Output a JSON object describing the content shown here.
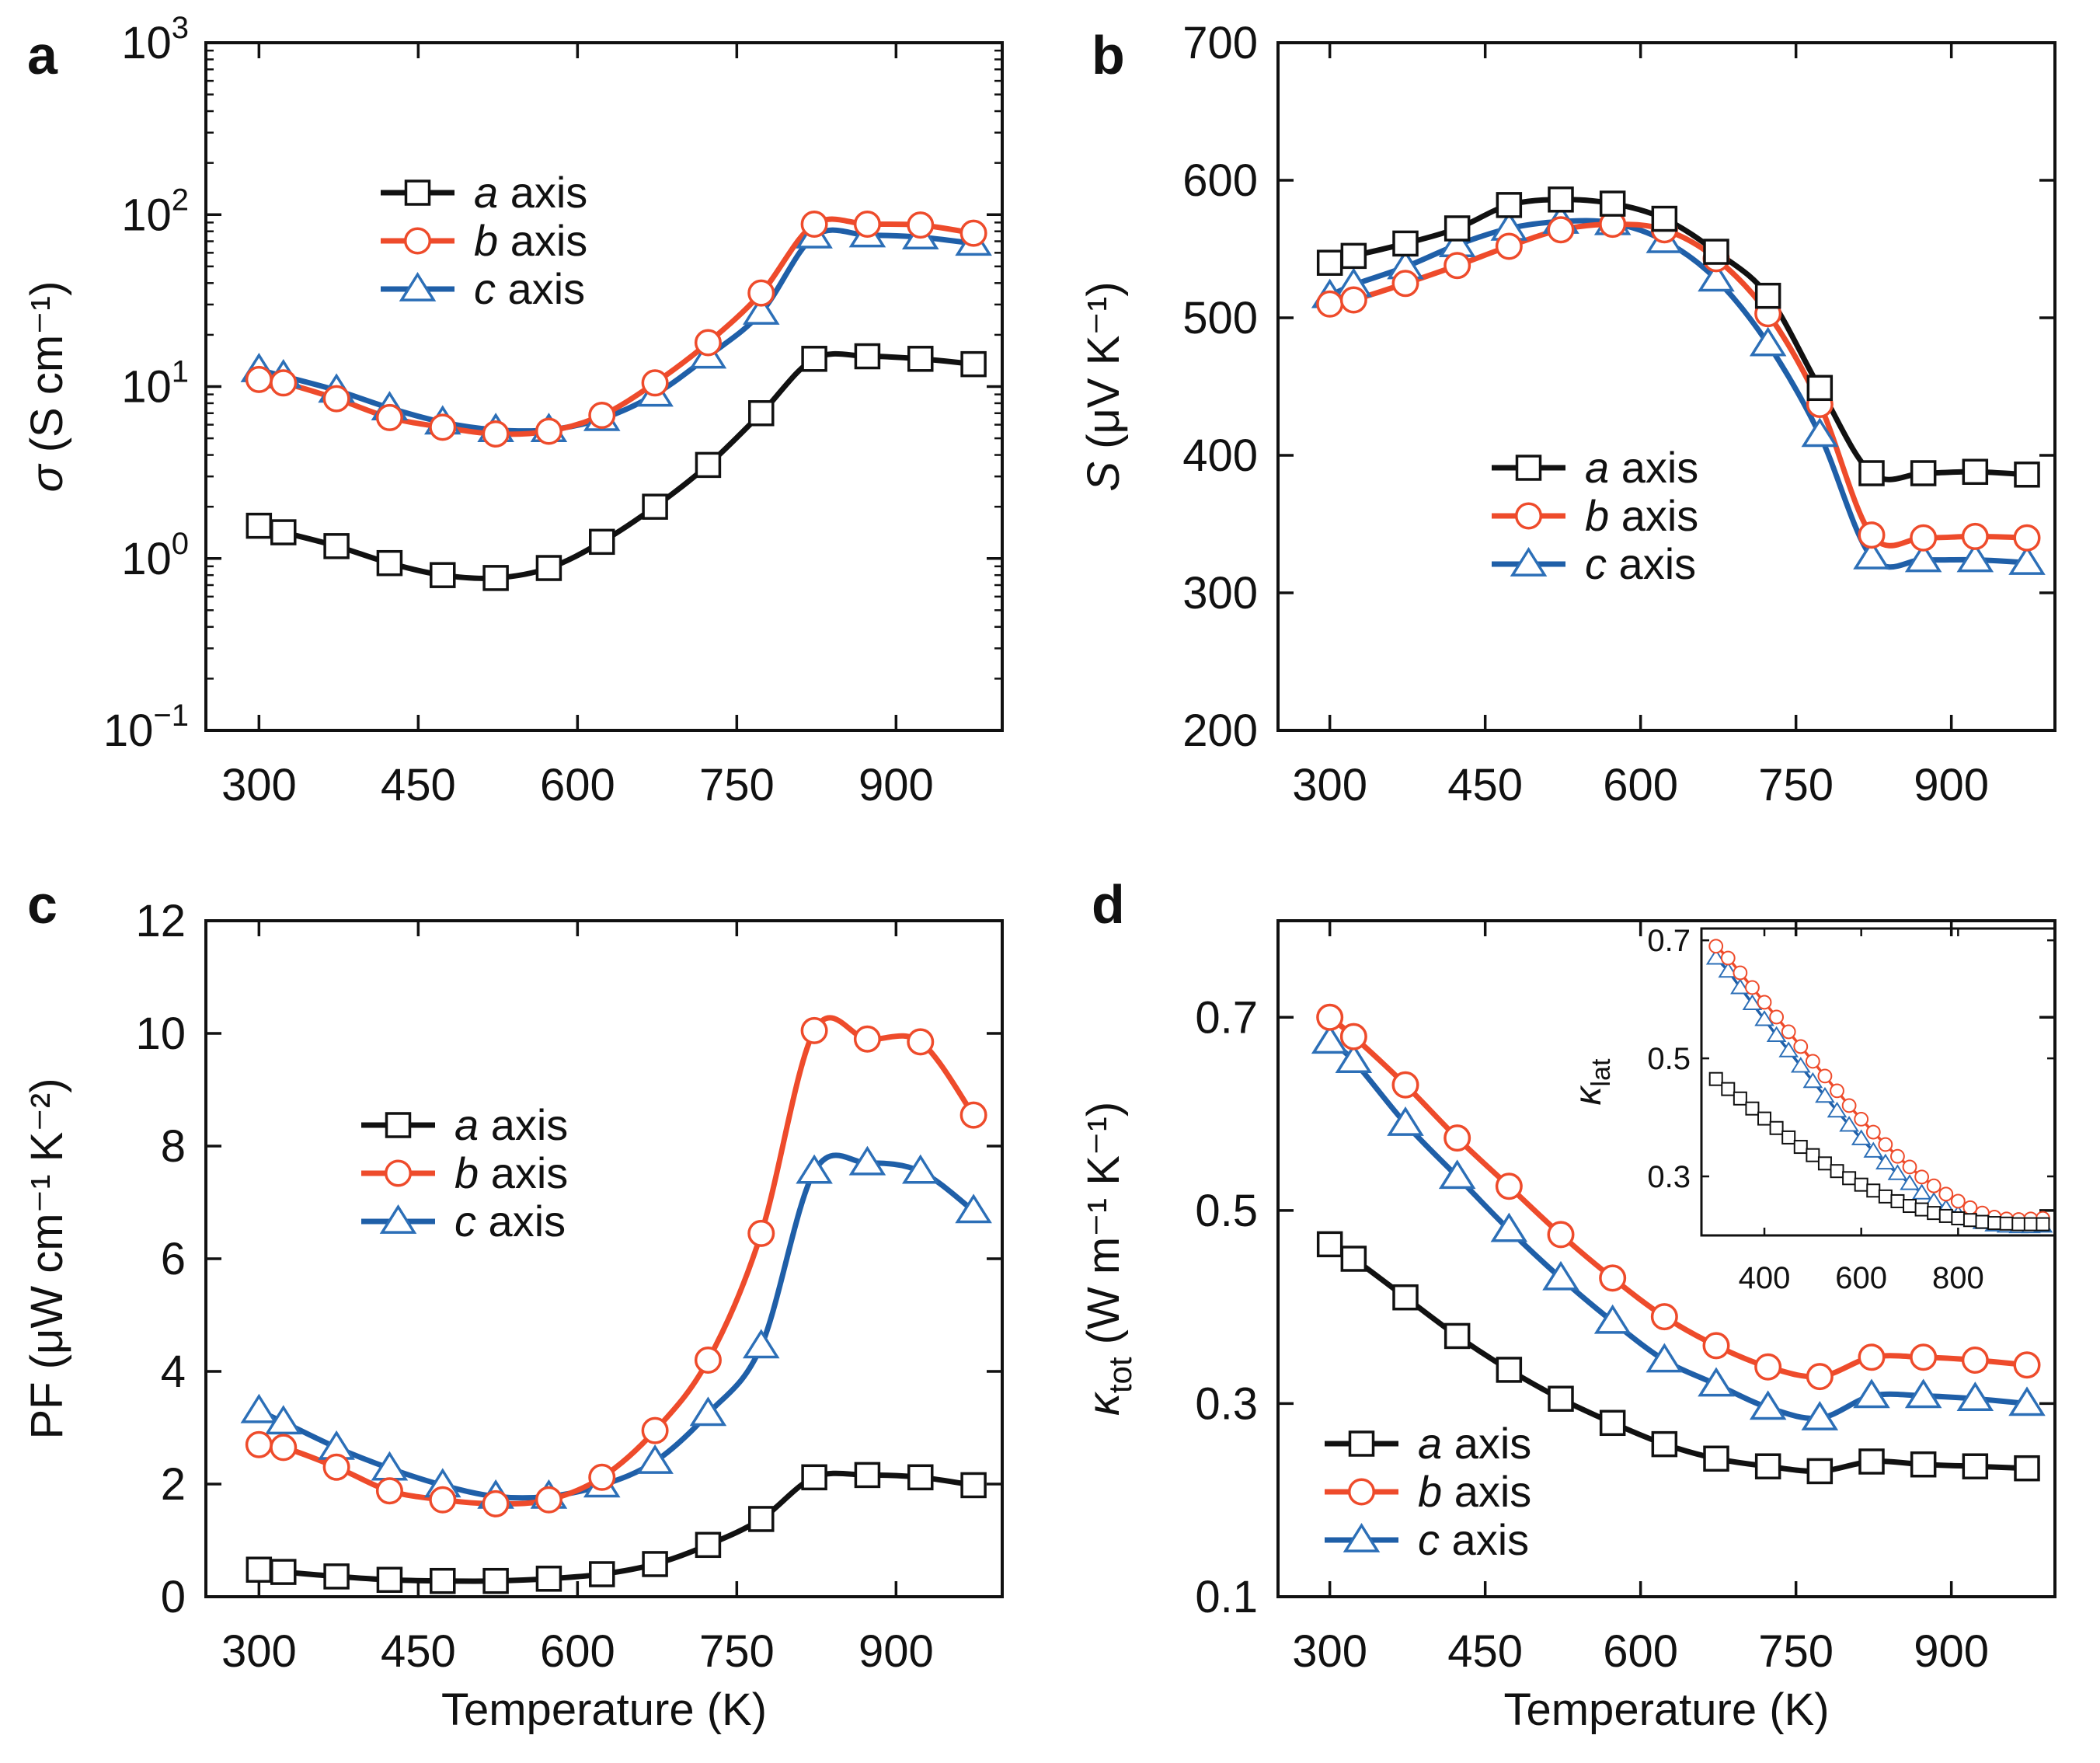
{
  "figure": {
    "legend_labels": [
      "a axis",
      "b axis",
      "c axis"
    ],
    "colors": {
      "a": "#111111",
      "b": "#ee4b2b",
      "c": "#1f5fa8",
      "c_marker": "#2c6fb7"
    }
  },
  "chart_data": [
    {
      "id": "a",
      "panel_label": "a",
      "type": "line",
      "scale_y": "log",
      "ylabel": "σ (S cm⁻¹)",
      "xlabel": "",
      "xlim": [
        250,
        1000
      ],
      "ylim": [
        0.1,
        1000
      ],
      "xticks": [
        300,
        450,
        600,
        750,
        900
      ],
      "xtick_labels": [
        "300",
        "450",
        "600",
        "750",
        "900"
      ],
      "yticks": [
        0.1,
        1,
        10,
        100,
        1000
      ],
      "ytick_labels": [
        [
          "10",
          "−1"
        ],
        [
          "10",
          "0"
        ],
        [
          "10",
          "1"
        ],
        [
          "10",
          "2"
        ],
        [
          "10",
          "3"
        ]
      ],
      "legend_position": "upper-left",
      "x": [
        300,
        323,
        373,
        423,
        473,
        523,
        573,
        623,
        673,
        723,
        773,
        823,
        873,
        923,
        973
      ],
      "series": [
        {
          "name": "a axis",
          "key": "a",
          "values": [
            1.55,
            1.42,
            1.18,
            0.94,
            0.8,
            0.77,
            0.88,
            1.25,
            2.0,
            3.5,
            7.0,
            14.5,
            15.0,
            14.5,
            13.5
          ]
        },
        {
          "name": "b axis",
          "key": "b",
          "values": [
            11.0,
            10.5,
            8.5,
            6.6,
            5.8,
            5.3,
            5.5,
            6.8,
            10.5,
            18.0,
            35.0,
            88.0,
            88.0,
            87.0,
            78.0
          ]
        },
        {
          "name": "c axis",
          "key": "c",
          "values": [
            12.5,
            11.5,
            9.5,
            7.5,
            6.2,
            5.6,
            5.6,
            6.5,
            9.0,
            15.0,
            27.0,
            75.0,
            76.0,
            74.0,
            68.0
          ]
        }
      ]
    },
    {
      "id": "b",
      "panel_label": "b",
      "type": "line",
      "scale_y": "linear",
      "ylabel": "S (μV K⁻¹)",
      "xlabel": "",
      "xlim": [
        250,
        1000
      ],
      "ylim": [
        200,
        700
      ],
      "xticks": [
        300,
        450,
        600,
        750,
        900
      ],
      "xtick_labels": [
        "300",
        "450",
        "600",
        "750",
        "900"
      ],
      "yticks": [
        200,
        300,
        400,
        500,
        600,
        700
      ],
      "ytick_labels": [
        "200",
        "300",
        "400",
        "500",
        "600",
        "700"
      ],
      "legend_position": "lower-right",
      "x": [
        300,
        323,
        373,
        423,
        473,
        523,
        573,
        623,
        673,
        723,
        773,
        823,
        873,
        923,
        973
      ],
      "series": [
        {
          "name": "a axis",
          "key": "a",
          "values": [
            540,
            545,
            554,
            565,
            582,
            586,
            583,
            572,
            548,
            516,
            449,
            387,
            387,
            388,
            386
          ]
        },
        {
          "name": "b axis",
          "key": "b",
          "values": [
            510,
            513,
            525,
            538,
            552,
            564,
            568,
            564,
            543,
            503,
            437,
            342,
            340,
            341,
            340
          ]
        },
        {
          "name": "c axis",
          "key": "c",
          "values": [
            516,
            524,
            537,
            553,
            565,
            570,
            569,
            556,
            528,
            481,
            415,
            326,
            324,
            324,
            322
          ]
        }
      ]
    },
    {
      "id": "c",
      "panel_label": "c",
      "type": "line",
      "scale_y": "linear",
      "ylabel": "PF (μW cm⁻¹ K⁻²)",
      "xlabel": "Temperature (K)",
      "xlim": [
        250,
        1000
      ],
      "ylim": [
        0,
        12
      ],
      "xticks": [
        300,
        450,
        600,
        750,
        900
      ],
      "xtick_labels": [
        "300",
        "450",
        "600",
        "750",
        "900"
      ],
      "yticks": [
        0,
        2,
        4,
        6,
        8,
        10,
        12
      ],
      "ytick_labels": [
        "0",
        "2",
        "4",
        "6",
        "8",
        "10",
        "12"
      ],
      "legend_position": "center-left",
      "x": [
        300,
        323,
        373,
        423,
        473,
        523,
        573,
        623,
        673,
        723,
        773,
        823,
        873,
        923,
        973
      ],
      "series": [
        {
          "name": "a axis",
          "key": "a",
          "values": [
            0.48,
            0.44,
            0.36,
            0.3,
            0.28,
            0.28,
            0.32,
            0.4,
            0.58,
            0.92,
            1.38,
            2.12,
            2.16,
            2.12,
            1.98
          ]
        },
        {
          "name": "b axis",
          "key": "b",
          "values": [
            2.7,
            2.65,
            2.3,
            1.88,
            1.72,
            1.65,
            1.72,
            2.12,
            2.95,
            4.2,
            6.45,
            10.05,
            9.9,
            9.85,
            8.55
          ]
        },
        {
          "name": "c axis",
          "key": "c",
          "values": [
            3.3,
            3.1,
            2.65,
            2.28,
            1.98,
            1.78,
            1.78,
            1.98,
            2.4,
            3.25,
            4.45,
            7.55,
            7.7,
            7.55,
            6.85
          ]
        }
      ]
    },
    {
      "id": "d",
      "panel_label": "d",
      "type": "line",
      "scale_y": "linear",
      "ylabel": "κtot (W m⁻¹ K⁻¹)",
      "xlabel": "Temperature (K)",
      "xlim": [
        250,
        1000
      ],
      "ylim": [
        0.1,
        0.8
      ],
      "xticks": [
        300,
        450,
        600,
        750,
        900
      ],
      "xtick_labels": [
        "300",
        "450",
        "600",
        "750",
        "900"
      ],
      "yticks": [
        0.1,
        0.3,
        0.5,
        0.7
      ],
      "ytick_labels": [
        "0.1",
        "0.3",
        "0.5",
        "0.7"
      ],
      "legend_position": "lower-left",
      "x": [
        300,
        323,
        373,
        423,
        473,
        523,
        573,
        623,
        673,
        723,
        773,
        823,
        873,
        923,
        973
      ],
      "series": [
        {
          "name": "a axis",
          "key": "a",
          "values": [
            0.465,
            0.45,
            0.41,
            0.37,
            0.335,
            0.305,
            0.28,
            0.258,
            0.243,
            0.235,
            0.23,
            0.24,
            0.237,
            0.235,
            0.233
          ]
        },
        {
          "name": "b axis",
          "key": "b",
          "values": [
            0.7,
            0.68,
            0.63,
            0.575,
            0.525,
            0.475,
            0.43,
            0.39,
            0.36,
            0.338,
            0.328,
            0.348,
            0.348,
            0.345,
            0.34
          ]
        },
        {
          "name": "c axis",
          "key": "c",
          "values": [
            0.675,
            0.655,
            0.59,
            0.535,
            0.48,
            0.43,
            0.385,
            0.345,
            0.32,
            0.296,
            0.285,
            0.308,
            0.308,
            0.305,
            0.3
          ]
        }
      ]
    },
    {
      "id": "d-inset",
      "panel_label": "",
      "type": "line",
      "scale_y": "linear",
      "ylabel": "κlat",
      "xlabel": "",
      "xlim": [
        270,
        1000
      ],
      "ylim": [
        0.2,
        0.72
      ],
      "xticks": [
        400,
        600,
        800
      ],
      "xtick_labels": [
        "400",
        "600",
        "800"
      ],
      "yticks": [
        0.3,
        0.5,
        0.7
      ],
      "ytick_labels": [
        "0.3",
        "0.5",
        "0.7"
      ],
      "legend_position": "none",
      "x": [
        300,
        325,
        350,
        375,
        400,
        425,
        450,
        475,
        500,
        525,
        550,
        575,
        600,
        625,
        650,
        675,
        700,
        725,
        750,
        775,
        800,
        825,
        850,
        875,
        900,
        925,
        950,
        975
      ],
      "series": [
        {
          "name": "a axis",
          "key": "a",
          "values": [
            0.465,
            0.448,
            0.432,
            0.415,
            0.398,
            0.382,
            0.366,
            0.35,
            0.336,
            0.322,
            0.309,
            0.297,
            0.286,
            0.276,
            0.266,
            0.258,
            0.25,
            0.244,
            0.238,
            0.233,
            0.229,
            0.226,
            0.223,
            0.221,
            0.22,
            0.219,
            0.219,
            0.219
          ]
        },
        {
          "name": "b axis",
          "key": "b",
          "values": [
            0.69,
            0.67,
            0.645,
            0.62,
            0.595,
            0.57,
            0.545,
            0.52,
            0.495,
            0.47,
            0.445,
            0.42,
            0.397,
            0.375,
            0.354,
            0.334,
            0.316,
            0.299,
            0.284,
            0.27,
            0.258,
            0.247,
            0.238,
            0.231,
            0.228,
            0.227,
            0.228,
            0.229
          ]
        },
        {
          "name": "c axis",
          "key": "c",
          "values": [
            0.67,
            0.648,
            0.62,
            0.593,
            0.566,
            0.539,
            0.513,
            0.487,
            0.461,
            0.436,
            0.411,
            0.387,
            0.364,
            0.343,
            0.323,
            0.305,
            0.288,
            0.272,
            0.258,
            0.246,
            0.236,
            0.228,
            0.222,
            0.218,
            0.216,
            0.215,
            0.215,
            0.216
          ]
        }
      ]
    }
  ]
}
